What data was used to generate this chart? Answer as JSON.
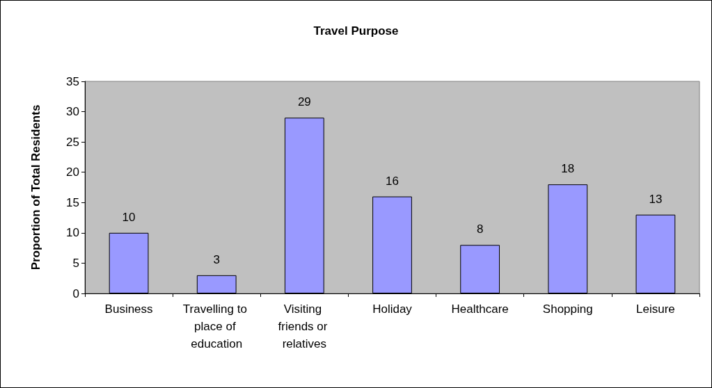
{
  "chart_data": {
    "type": "bar",
    "title": "Travel Purpose",
    "ylabel": "Proportion of Total Residents",
    "categories": [
      "Business",
      "Travelling to place of education",
      "Visiting friends or relatives",
      "Holiday",
      "Healthcare",
      "Shopping",
      "Leisure"
    ],
    "values": [
      10,
      3,
      29,
      16,
      8,
      18,
      13
    ],
    "color": "#9999ff",
    "ylim": [
      0,
      35
    ],
    "yticks": [
      0,
      5,
      10,
      15,
      20,
      25,
      30,
      35
    ],
    "grid": false,
    "data_labels": true
  }
}
